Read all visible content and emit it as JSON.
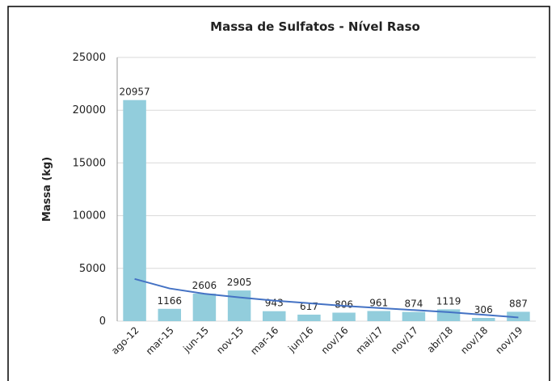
{
  "chart_data": {
    "type": "bar",
    "title": "Massa de Sulfatos - Nível Raso",
    "y_label": "Massa (kg)",
    "categories": [
      "ago-12",
      "mar-15",
      "jun-15",
      "nov-15",
      "mar-16",
      "jun/16",
      "nov/16",
      "mai/17",
      "nov/17",
      "abr/18",
      "nov/18",
      "nov/19"
    ],
    "values": [
      20957,
      1166,
      2606,
      2905,
      943,
      617,
      806,
      961,
      874,
      1119,
      306,
      887
    ],
    "color": "#92cddc",
    "trendline": {
      "color": "#4472c4",
      "values": [
        4000,
        3100,
        2600,
        2250,
        1950,
        1700,
        1450,
        1250,
        1050,
        850,
        600,
        350
      ]
    },
    "ylim": [
      0,
      25000
    ],
    "yticks": [
      0,
      5000,
      10000,
      15000,
      20000,
      25000
    ],
    "grid": true
  }
}
